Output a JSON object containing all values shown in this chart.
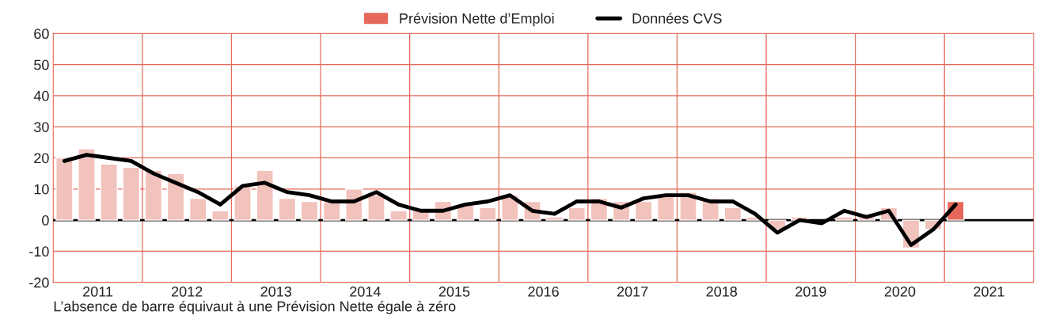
{
  "chart_data": {
    "type": "bar",
    "x": [
      2011.125,
      2011.375,
      2011.625,
      2011.875,
      2012.125,
      2012.375,
      2012.625,
      2012.875,
      2013.125,
      2013.375,
      2013.625,
      2013.875,
      2014.125,
      2014.375,
      2014.625,
      2014.875,
      2015.125,
      2015.375,
      2015.625,
      2015.875,
      2016.125,
      2016.375,
      2016.625,
      2016.875,
      2017.125,
      2017.375,
      2017.625,
      2017.875,
      2018.125,
      2018.375,
      2018.625,
      2018.875,
      2019.125,
      2019.375,
      2019.625,
      2019.875,
      2020.125,
      2020.375,
      2020.625,
      2020.875,
      2021.125
    ],
    "series": [
      {
        "name": "Prévision Nette d’Emploi",
        "color": "#e5685a",
        "colors": [
          "#f2c2bc",
          "#f2c2bc",
          "#f2c2bc",
          "#f2c2bc",
          "#f2c2bc",
          "#f2c2bc",
          "#f2c2bc",
          "#f2c2bc",
          "#f2c2bc",
          "#f2c2bc",
          "#f2c2bc",
          "#f2c2bc",
          "#f2c2bc",
          "#f2c2bc",
          "#f2c2bc",
          "#f2c2bc",
          "#f2c2bc",
          "#f2c2bc",
          "#f2c2bc",
          "#f2c2bc",
          "#f2c2bc",
          "#f2c2bc",
          "#f2c2bc",
          "#f2c2bc",
          "#f2c2bc",
          "#f2c2bc",
          "#f2c2bc",
          "#f2c2bc",
          "#f2c2bc",
          "#f2c2bc",
          "#f2c2bc",
          "#f2c2bc",
          "#f2c2bc",
          "#f2c2bc",
          "#f2c2bc",
          "#f2c2bc",
          "#f2c2bc",
          "#f2c2bc",
          "#f2c2bc",
          "#f2c2bc",
          "#e5685a"
        ],
        "values": [
          20,
          23,
          18,
          17,
          16,
          15,
          7,
          3,
          11,
          16,
          7,
          6,
          6,
          10,
          8,
          3,
          3,
          6,
          5,
          4,
          8,
          6,
          1,
          4,
          7,
          6,
          6,
          8,
          9,
          7,
          4,
          1,
          -3,
          1,
          null,
          1,
          1,
          4,
          -9,
          -3,
          6
        ]
      },
      {
        "name": "Données CVS",
        "type": "line",
        "color": "#000000",
        "values": [
          19,
          21,
          20,
          19,
          15,
          12,
          9,
          5,
          11,
          12,
          9,
          8,
          6,
          6,
          9,
          5,
          3,
          3,
          5,
          6,
          8,
          3,
          2,
          6,
          6,
          4,
          7,
          8,
          8,
          6,
          6,
          2,
          -4,
          0,
          -1,
          3,
          1,
          3,
          -8,
          -3,
          5
        ]
      }
    ],
    "xlim": [
      2011,
      2022
    ],
    "xticks": [
      {
        "value": 2011.5,
        "label": "2011"
      },
      {
        "value": 2012,
        "label": null
      },
      {
        "value": 2012.5,
        "label": "2012"
      },
      {
        "value": 2013,
        "label": null
      },
      {
        "value": 2013.5,
        "label": "2013"
      },
      {
        "value": 2014,
        "label": null
      },
      {
        "value": 2014.5,
        "label": "2014"
      },
      {
        "value": 2015,
        "label": null
      },
      {
        "value": 2015.5,
        "label": "2015"
      },
      {
        "value": 2016,
        "label": null
      },
      {
        "value": 2016.5,
        "label": "2016"
      },
      {
        "value": 2017,
        "label": null
      },
      {
        "value": 2017.5,
        "label": "2017"
      },
      {
        "value": 2018,
        "label": null
      },
      {
        "value": 2018.5,
        "label": "2018"
      },
      {
        "value": 2019,
        "label": null
      },
      {
        "value": 2019.5,
        "label": "2019"
      },
      {
        "value": 2020,
        "label": null
      },
      {
        "value": 2020.5,
        "label": "2020"
      },
      {
        "value": 2021,
        "label": null
      },
      {
        "value": 2021.5,
        "label": "2021"
      }
    ],
    "ylim": [
      -20,
      60
    ],
    "yticks": [
      -20,
      -10,
      0,
      10,
      20,
      30,
      40,
      50,
      60
    ],
    "ref_lines": [
      {
        "axis": "y",
        "value": 0,
        "color": "#000000"
      }
    ],
    "grid": true,
    "legend": "top",
    "annotations": [
      "L’absence de barre équivaut à une Prévision Nette égale à zéro"
    ]
  }
}
